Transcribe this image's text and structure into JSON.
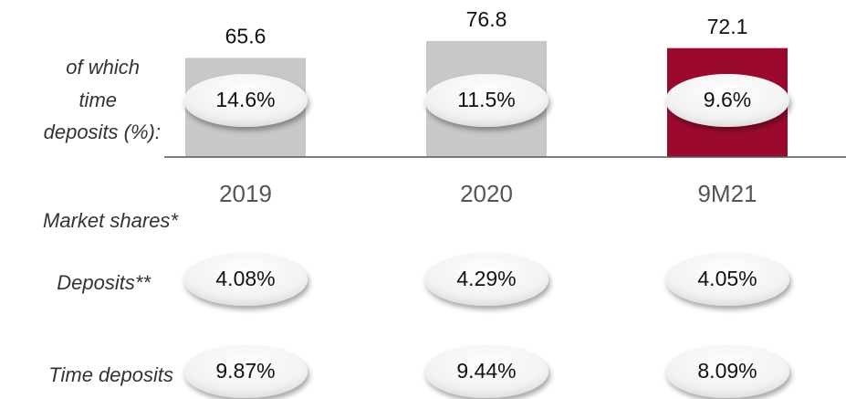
{
  "chart_data": {
    "type": "bar",
    "categories": [
      "2019",
      "2020",
      "9M21"
    ],
    "values": [
      65.6,
      76.8,
      72.1
    ],
    "colors": [
      "#c8c8c8",
      "#c8c8c8",
      "#9b0a2e"
    ],
    "ylim": [
      0,
      80
    ],
    "inner_label": [
      "of which",
      "time",
      "deposits (%):"
    ],
    "inner_values": [
      "14.6%",
      "11.5%",
      "9.6%"
    ]
  },
  "market_shares": {
    "title": "Market shares*",
    "rows": [
      {
        "label": "Deposits**",
        "values": [
          "4.08%",
          "4.29%",
          "4.05%"
        ]
      },
      {
        "label": "Time deposits",
        "values": [
          "9.87%",
          "9.44%",
          "8.09%"
        ]
      }
    ]
  }
}
